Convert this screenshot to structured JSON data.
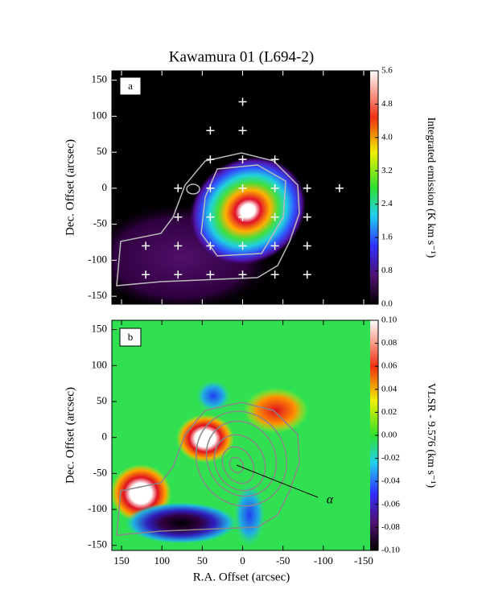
{
  "chart_data": [
    {
      "type": "heatmap",
      "title": "Kawamura 01 (L694-2)",
      "panel_label": "a",
      "ylabel": "Dec. Offset (arcsec)",
      "xlim": [
        162,
        -158
      ],
      "ylim": [
        -161,
        163
      ],
      "xticks": [
        150,
        100,
        50,
        0,
        -50,
        -100,
        -150
      ],
      "yticks": [
        150,
        100,
        50,
        0,
        -50,
        -100,
        -150
      ],
      "colorbar": {
        "label": "Integrated emission (K km s⁻¹)",
        "lim": [
          0,
          5.6
        ],
        "ticks": [
          {
            "value": 5.6,
            "label": "5.6"
          },
          {
            "value": 4.8,
            "label": "4.8"
          },
          {
            "value": 4,
            "label": "4.0"
          },
          {
            "value": 3.2,
            "label": "3.2"
          },
          {
            "value": 2.4,
            "label": "2.4"
          },
          {
            "value": 1.6,
            "label": "1.6"
          },
          {
            "value": 0.8,
            "label": "0.8"
          },
          {
            "value": 0,
            "label": "0.0"
          }
        ]
      },
      "points": {
        "x": [
          0,
          40,
          0,
          40,
          0,
          -40,
          80,
          40,
          0,
          -40,
          -80,
          -120,
          80,
          40,
          0,
          -40,
          -80,
          120,
          80,
          40,
          0,
          -40,
          -80,
          120,
          80,
          40,
          0,
          -40,
          -80
        ],
        "y": [
          120,
          80,
          80,
          40,
          40,
          40,
          0,
          0,
          0,
          0,
          0,
          0,
          -40,
          -40,
          -40,
          -40,
          -40,
          -80,
          -80,
          -80,
          -80,
          -80,
          -80,
          -120,
          -120,
          -120,
          -120,
          -120,
          -120
        ]
      }
    },
    {
      "type": "heatmap",
      "panel_label": "b",
      "xlabel": "R.A. Offset (arcsec)",
      "ylabel": "Dec. Offset (arcsec)",
      "xlim": [
        162,
        -158
      ],
      "ylim": [
        -157,
        163
      ],
      "xticks": [
        150,
        100,
        50,
        0,
        -50,
        -100,
        -150
      ],
      "yticks": [
        150,
        100,
        50,
        0,
        -50,
        -100,
        -150
      ],
      "annotation": "α",
      "colorbar": {
        "label": "VLSR - 9.576 (km s⁻¹)",
        "lim": [
          -0.1,
          0.1
        ],
        "ticks": [
          {
            "value": 0.1,
            "label": "0.10"
          },
          {
            "value": 0.08,
            "label": "0.08"
          },
          {
            "value": 0.06,
            "label": "0.06"
          },
          {
            "value": 0.04,
            "label": "0.04"
          },
          {
            "value": 0.02,
            "label": "0.02"
          },
          {
            "value": 0,
            "label": "0.00"
          },
          {
            "value": -0.02,
            "label": "-0.02"
          },
          {
            "value": -0.04,
            "label": "-0.04"
          },
          {
            "value": -0.06,
            "label": "-0.06"
          },
          {
            "value": -0.08,
            "label": "-0.08"
          },
          {
            "value": -0.1,
            "label": "-0.10"
          }
        ]
      }
    }
  ]
}
